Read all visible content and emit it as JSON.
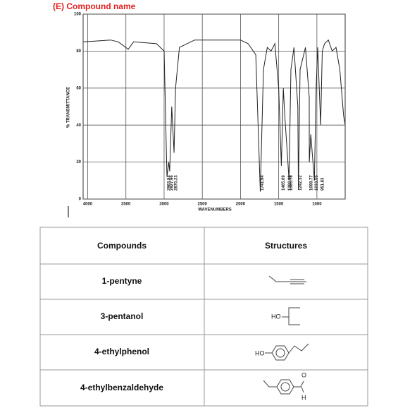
{
  "header": {
    "title": "(E) Compound name"
  },
  "spectrum": {
    "y_label": "% TRANSMITTANCE",
    "x_label": "WAVENUMBERS",
    "xlim": [
      4060,
      630
    ],
    "ylim": [
      0,
      100
    ],
    "xticks": [
      4000,
      3500,
      3000,
      2500,
      2000,
      1500,
      1000
    ],
    "yticks": [
      0,
      20,
      40,
      60,
      80,
      100
    ],
    "trace": {
      "x": [
        4060,
        3700,
        3600,
        3470,
        3400,
        3100,
        3000,
        2963,
        2940,
        2927,
        2900,
        2870,
        2850,
        2800,
        2600,
        2300,
        2000,
        1900,
        1800,
        1741,
        1700,
        1650,
        1600,
        1550,
        1500,
        1465,
        1440,
        1420,
        1380,
        1365,
        1340,
        1300,
        1250,
        1242,
        1220,
        1150,
        1100,
        1099,
        1080,
        1033,
        1010,
        990,
        951,
        930,
        900,
        850,
        800,
        750,
        700,
        650,
        630
      ],
      "y": [
        85,
        86,
        85,
        81,
        85,
        84,
        80,
        12,
        20,
        15,
        50,
        25,
        60,
        82,
        86,
        86,
        86,
        84,
        78,
        4,
        70,
        82,
        80,
        84,
        60,
        18,
        60,
        45,
        20,
        10,
        70,
        82,
        50,
        5,
        70,
        82,
        55,
        20,
        35,
        10,
        60,
        82,
        40,
        80,
        84,
        86,
        80,
        82,
        70,
        45,
        40
      ]
    },
    "peaks": [
      {
        "x": 2963.84,
        "label": "2963.84"
      },
      {
        "x": 2927.96,
        "label": "2927.96"
      },
      {
        "x": 2870.23,
        "label": "2870.23"
      },
      {
        "x": 1741.94,
        "label": "1741.94"
      },
      {
        "x": 1465.09,
        "label": "1465.09"
      },
      {
        "x": 1380.92,
        "label": "1380.92"
      },
      {
        "x": 1365.78,
        "label": "1365.78"
      },
      {
        "x": 1242.32,
        "label": "1242.32"
      },
      {
        "x": 1099.77,
        "label": "1099.77"
      },
      {
        "x": 1033.55,
        "label": "1033.55"
      },
      {
        "x": 951.83,
        "label": "951.83"
      }
    ]
  },
  "table": {
    "headers": [
      "Compounds",
      "Structures"
    ],
    "rows": [
      {
        "compound": "1-pentyne",
        "atoms": []
      },
      {
        "compound": "3-pentanol",
        "atoms": [
          "HO"
        ]
      },
      {
        "compound": "4-ethylphenol",
        "atoms": [
          "HO"
        ]
      },
      {
        "compound": "4-ethylbenzaldehyde",
        "atoms": [
          "O",
          "H"
        ]
      }
    ]
  }
}
